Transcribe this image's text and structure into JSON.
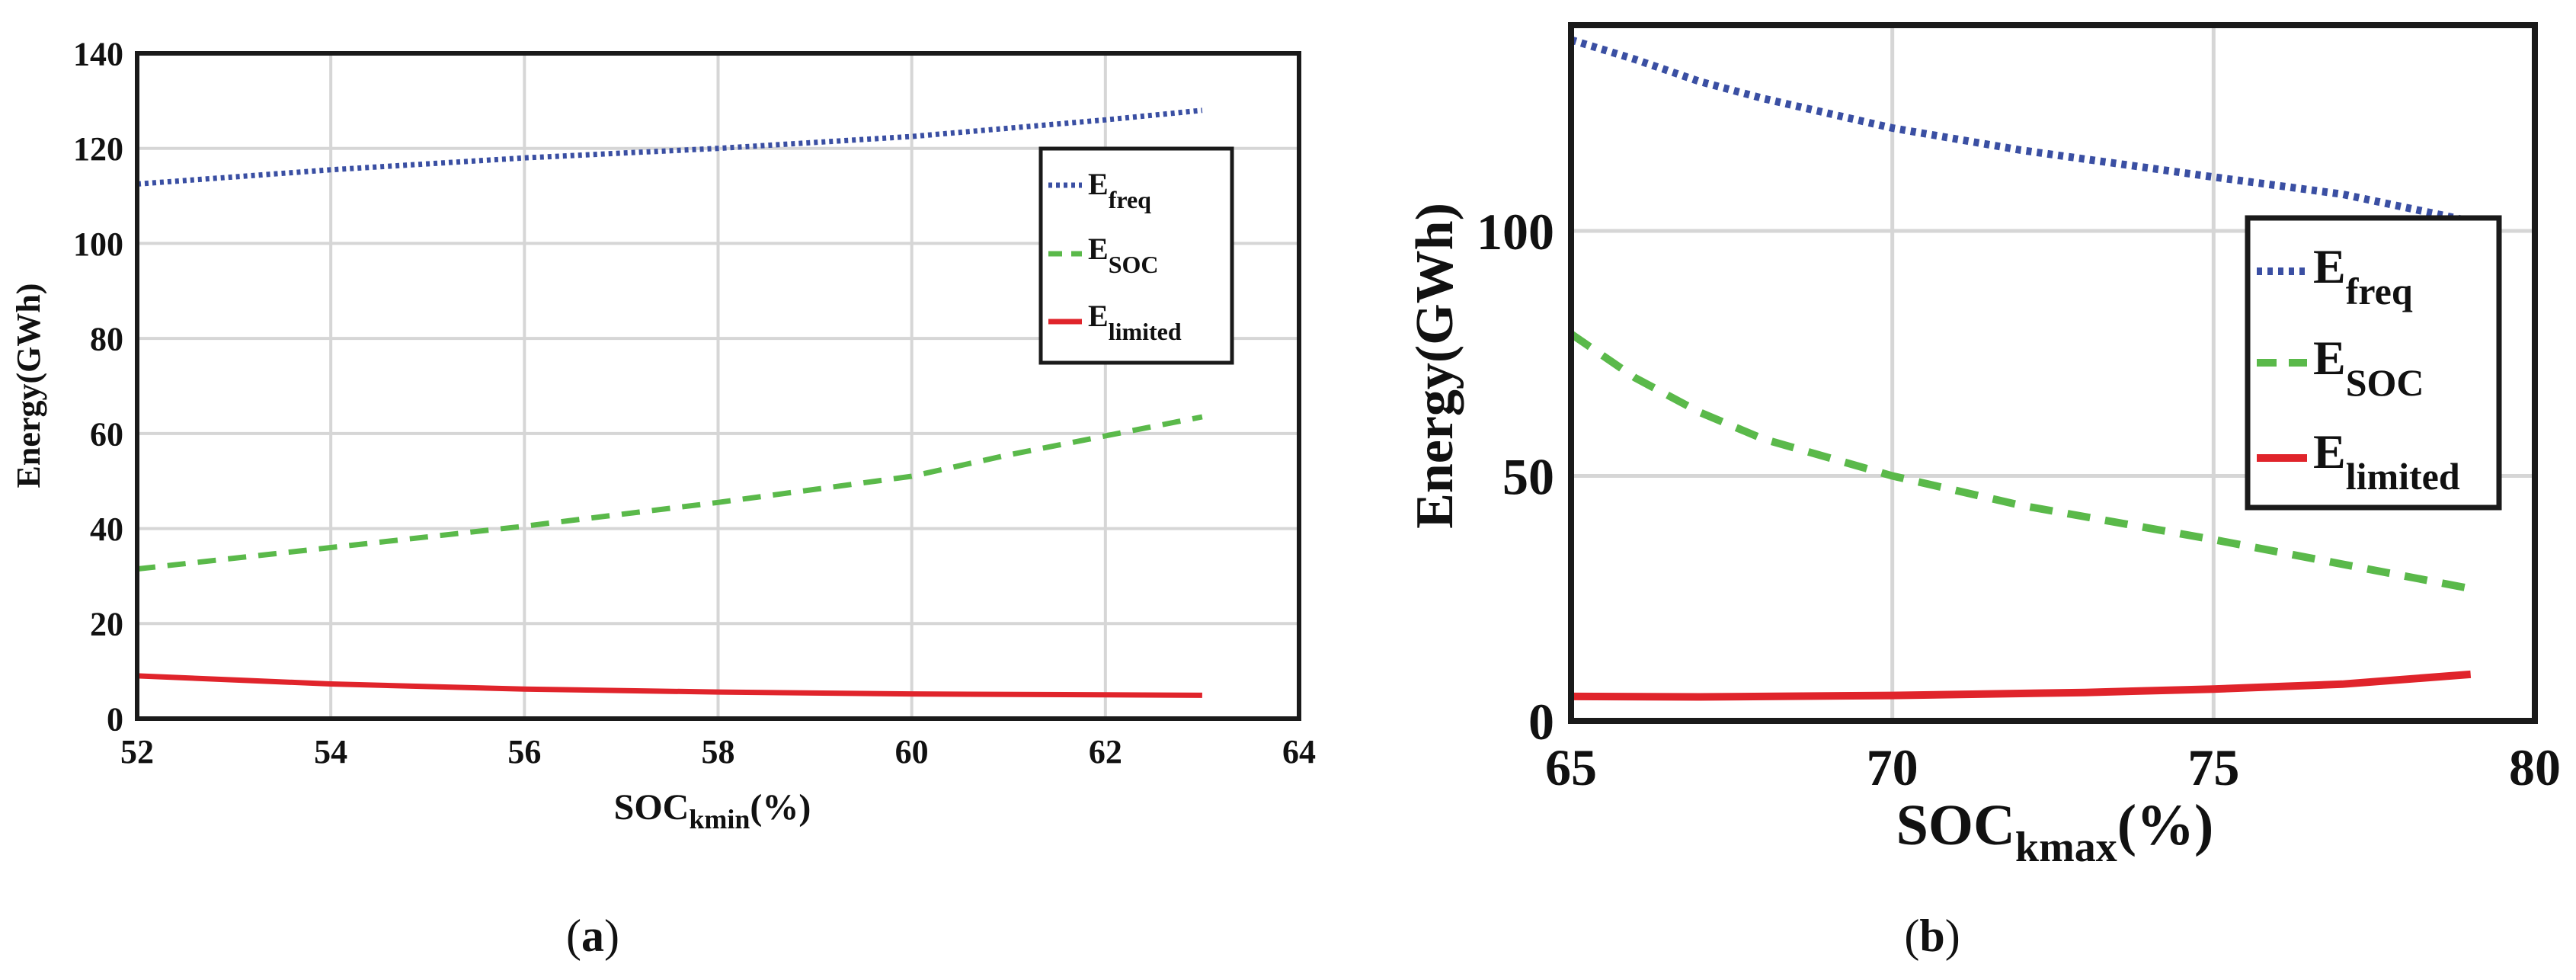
{
  "chart_data": [
    {
      "id": "a",
      "type": "line",
      "caption_prefix": "(",
      "caption_letter": "a",
      "caption_suffix": ")",
      "ylabel": "Energy(GWh)",
      "xlabel_main": "SOC",
      "xlabel_sub": "kmin",
      "xlabel_tail": "(%)",
      "xlim": [
        52,
        64
      ],
      "ylim": [
        0,
        140
      ],
      "xticks": [
        52,
        54,
        56,
        58,
        60,
        62,
        64
      ],
      "yticks": [
        0,
        20,
        40,
        60,
        80,
        100,
        120,
        140
      ],
      "grid": true,
      "legend_position": "upper-right",
      "series": [
        {
          "name": "E",
          "sub": "freq",
          "color": "#3a4fa3",
          "style": "dotted",
          "x": [
            52,
            54,
            56,
            58,
            60,
            62,
            63
          ],
          "y": [
            112.5,
            115.5,
            118,
            120,
            122.5,
            126,
            128
          ]
        },
        {
          "name": "E",
          "sub": "SOC",
          "color": "#5ab94a",
          "style": "dashed",
          "x": [
            52,
            54,
            56,
            58,
            60,
            61,
            62,
            63
          ],
          "y": [
            31.5,
            36,
            40.5,
            45.5,
            51,
            55.5,
            59.5,
            63.5
          ]
        },
        {
          "name": "E",
          "sub": "limited",
          "color": "#e0242b",
          "style": "solid",
          "x": [
            52,
            54,
            56,
            58,
            60,
            62,
            63
          ],
          "y": [
            9,
            7.3,
            6.2,
            5.6,
            5.2,
            5,
            4.9
          ]
        }
      ]
    },
    {
      "id": "b",
      "type": "line",
      "caption_prefix": "(",
      "caption_letter": "b",
      "caption_suffix": ")",
      "ylabel": "Energy(GWh)",
      "xlabel_main": "SOC",
      "xlabel_sub": "kmax",
      "xlabel_tail": "(%)",
      "xlim": [
        65,
        80
      ],
      "ylim": [
        0,
        142
      ],
      "xticks": [
        65,
        70,
        75,
        80
      ],
      "yticks": [
        0,
        50,
        100
      ],
      "grid": true,
      "legend_position": "right",
      "series": [
        {
          "name": "E",
          "sub": "freq",
          "color": "#3a4fa3",
          "style": "dotted",
          "x": [
            65,
            66,
            67,
            68,
            70,
            72,
            75,
            77,
            79
          ],
          "y": [
            139,
            135,
            130.5,
            127,
            121,
            116.5,
            111,
            107.5,
            102
          ]
        },
        {
          "name": "E",
          "sub": "SOC",
          "color": "#5ab94a",
          "style": "dashed",
          "x": [
            65,
            66,
            67,
            68,
            70,
            72,
            75,
            77,
            79
          ],
          "y": [
            79,
            70,
            63,
            57.5,
            50,
            44,
            37,
            32,
            27
          ]
        },
        {
          "name": "E",
          "sub": "limited",
          "color": "#e0242b",
          "style": "solid",
          "x": [
            65,
            67,
            70,
            73,
            75,
            77,
            79
          ],
          "y": [
            5,
            4.9,
            5.2,
            5.8,
            6.5,
            7.5,
            9.5
          ]
        }
      ]
    }
  ]
}
